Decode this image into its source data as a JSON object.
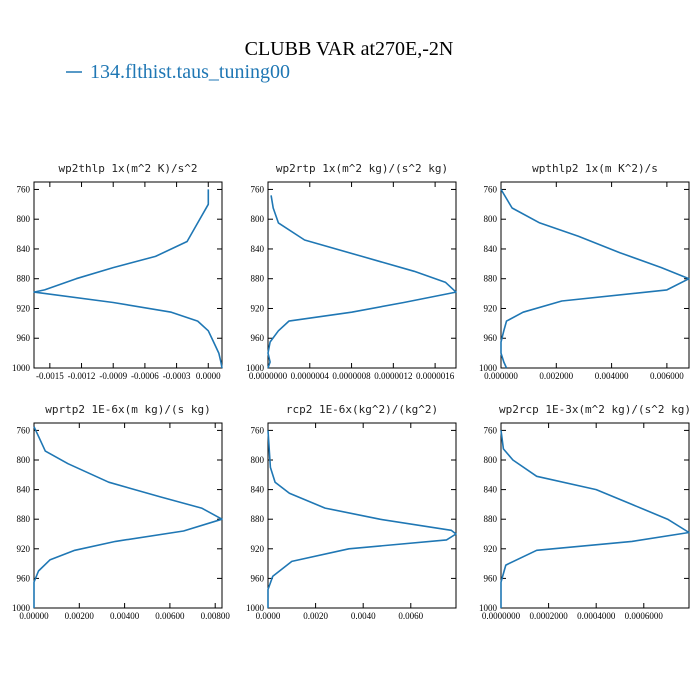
{
  "figure": {
    "title": "CLUBB VAR at270E,-2N",
    "legend": {
      "label": "134.flthist.taus_tuning00",
      "color": "#1f77b4"
    }
  },
  "chart_data": [
    {
      "type": "line",
      "title": "wp2thlp  1x(m^2 K)/s^2",
      "xlim": [
        -0.00165,
        0.00013
      ],
      "ylim": [
        1000,
        750
      ],
      "xticks": [
        -0.0015,
        -0.0012,
        -0.0009,
        -0.0006,
        -0.0003,
        0.0
      ],
      "xticklabels": [
        "-0.0015",
        "-0.0012",
        "-0.0009",
        "-0.0006",
        "-0.0003",
        "0.0000"
      ],
      "yticks": [
        760,
        800,
        840,
        880,
        920,
        960,
        1000
      ],
      "yticklabels": [
        "760",
        "800",
        "840",
        "880",
        "920",
        "960",
        "1000"
      ],
      "series": [
        {
          "x": [
            0.0,
            -0.0,
            -0.0001,
            -0.0002,
            -0.0005,
            -0.0009,
            -0.00125,
            -0.00155,
            -0.00165,
            -0.0009,
            -0.00035,
            -0.0001,
            0.0,
            5e-05,
            0.0001,
            0.00012,
            0.00013
          ],
          "y": [
            760,
            780,
            805,
            830,
            850,
            865,
            880,
            895,
            898,
            912,
            925,
            937,
            950,
            965,
            980,
            992,
            1000
          ]
        }
      ]
    },
    {
      "type": "line",
      "title": "wp2rtp  1x(m^2 kg)/(s^2 kg)",
      "xlim": [
        0.0,
        1.8e-06
      ],
      "ylim": [
        1000,
        750
      ],
      "xticks": [
        0.0,
        4e-07,
        8e-07,
        1.2e-06,
        1.6e-06
      ],
      "xticklabels": [
        "0.0000000",
        "0.0000004",
        "0.0000008",
        "0.0000012",
        "0.0000016"
      ],
      "yticks": [
        760,
        800,
        840,
        880,
        920,
        960,
        1000
      ],
      "yticklabels": [
        "760",
        "800",
        "840",
        "880",
        "920",
        "960",
        "1000"
      ],
      "series": [
        {
          "x": [
            3e-08,
            5e-08,
            1e-07,
            3.5e-07,
            9e-07,
            1.4e-06,
            1.7e-06,
            1.8e-06,
            1.3e-06,
            8e-07,
            2e-07,
            1e-07,
            2e-08,
            0.0,
            2e-08,
            0.0
          ],
          "y": [
            768,
            785,
            805,
            828,
            850,
            870,
            885,
            898,
            912,
            925,
            937,
            950,
            965,
            980,
            992,
            1000
          ]
        }
      ]
    },
    {
      "type": "line",
      "title": "wpthlp2  1x(m K^2)/s",
      "xlim": [
        0.0,
        0.0068
      ],
      "ylim": [
        1000,
        750
      ],
      "xticks": [
        0.0,
        0.002,
        0.004,
        0.006
      ],
      "xticklabels": [
        "0.000000",
        "0.002000",
        "0.004000",
        "0.006000"
      ],
      "yticks": [
        760,
        800,
        840,
        880,
        920,
        960,
        1000
      ],
      "yticklabels": [
        "760",
        "800",
        "840",
        "880",
        "920",
        "960",
        "1000"
      ],
      "series": [
        {
          "x": [
            0.0,
            0.0004,
            0.0014,
            0.0028,
            0.0043,
            0.0058,
            0.0068,
            0.006,
            0.0022,
            0.0008,
            0.0002,
            0.0001,
            0.0,
            0.0,
            0.0001,
            0.0002
          ],
          "y": [
            760,
            785,
            805,
            823,
            845,
            865,
            880,
            895,
            910,
            925,
            937,
            950,
            965,
            980,
            992,
            1000
          ]
        }
      ]
    },
    {
      "type": "line",
      "title": "wprtp2  1E-6x(m kg)/(s kg)",
      "xlim": [
        0.0,
        0.0083
      ],
      "ylim": [
        1000,
        750
      ],
      "xticks": [
        0.0,
        0.002,
        0.004,
        0.006,
        0.008
      ],
      "xticklabels": [
        "0.00000",
        "0.00200",
        "0.00400",
        "0.00600",
        "0.00800"
      ],
      "yticks": [
        760,
        800,
        840,
        880,
        920,
        960,
        1000
      ],
      "yticklabels": [
        "760",
        "800",
        "840",
        "880",
        "920",
        "960",
        "1000"
      ],
      "series": [
        {
          "x": [
            0.0,
            0.0002,
            0.0005,
            0.0015,
            0.0033,
            0.0056,
            0.0074,
            0.0083,
            0.0066,
            0.0036,
            0.0018,
            0.0007,
            0.0002,
            0.0,
            0.0,
            0.0
          ],
          "y": [
            755,
            768,
            788,
            805,
            830,
            850,
            865,
            880,
            896,
            910,
            922,
            935,
            950,
            965,
            980,
            1000
          ]
        }
      ]
    },
    {
      "type": "line",
      "title": "rcp2  1E-6x(kg^2)/(kg^2)",
      "xlim": [
        0.0,
        0.0079
      ],
      "ylim": [
        1000,
        750
      ],
      "xticks": [
        0.0,
        0.002,
        0.004,
        0.006
      ],
      "xticklabels": [
        "0.0000",
        "0.0020",
        "0.0040",
        "0.0060"
      ],
      "yticks": [
        760,
        800,
        840,
        880,
        920,
        960,
        1000
      ],
      "yticklabels": [
        "760",
        "800",
        "840",
        "880",
        "920",
        "960",
        "1000"
      ],
      "series": [
        {
          "x": [
            0.0,
            0.0001,
            0.0003,
            0.0009,
            0.0024,
            0.0047,
            0.0077,
            0.0079,
            0.0075,
            0.0034,
            0.001,
            0.0002,
            0.0,
            0.0
          ],
          "y": [
            760,
            810,
            830,
            845,
            865,
            880,
            895,
            900,
            908,
            920,
            937,
            957,
            975,
            1000
          ]
        }
      ]
    },
    {
      "type": "line",
      "title": "wp2rcp  1E-3x(m^2 kg)/(s^2 kg)",
      "xlim": [
        0.0,
        0.00079
      ],
      "ylim": [
        1000,
        750
      ],
      "xticks": [
        0.0,
        0.0002,
        0.0004,
        0.0006
      ],
      "xticklabels": [
        "0.0000000",
        "0.0002000",
        "0.0004000",
        "0.0006000"
      ],
      "yticks": [
        760,
        800,
        840,
        880,
        920,
        960,
        1000
      ],
      "yticklabels": [
        "760",
        "800",
        "840",
        "880",
        "920",
        "960",
        "1000"
      ],
      "series": [
        {
          "x": [
            0.0,
            1e-05,
            5e-05,
            0.00015,
            0.0004,
            0.00055,
            0.0007,
            0.00079,
            0.00055,
            0.00015,
            2e-05,
            0.0,
            0.0
          ],
          "y": [
            760,
            785,
            800,
            822,
            840,
            860,
            880,
            898,
            910,
            922,
            942,
            965,
            1000
          ]
        }
      ]
    }
  ]
}
